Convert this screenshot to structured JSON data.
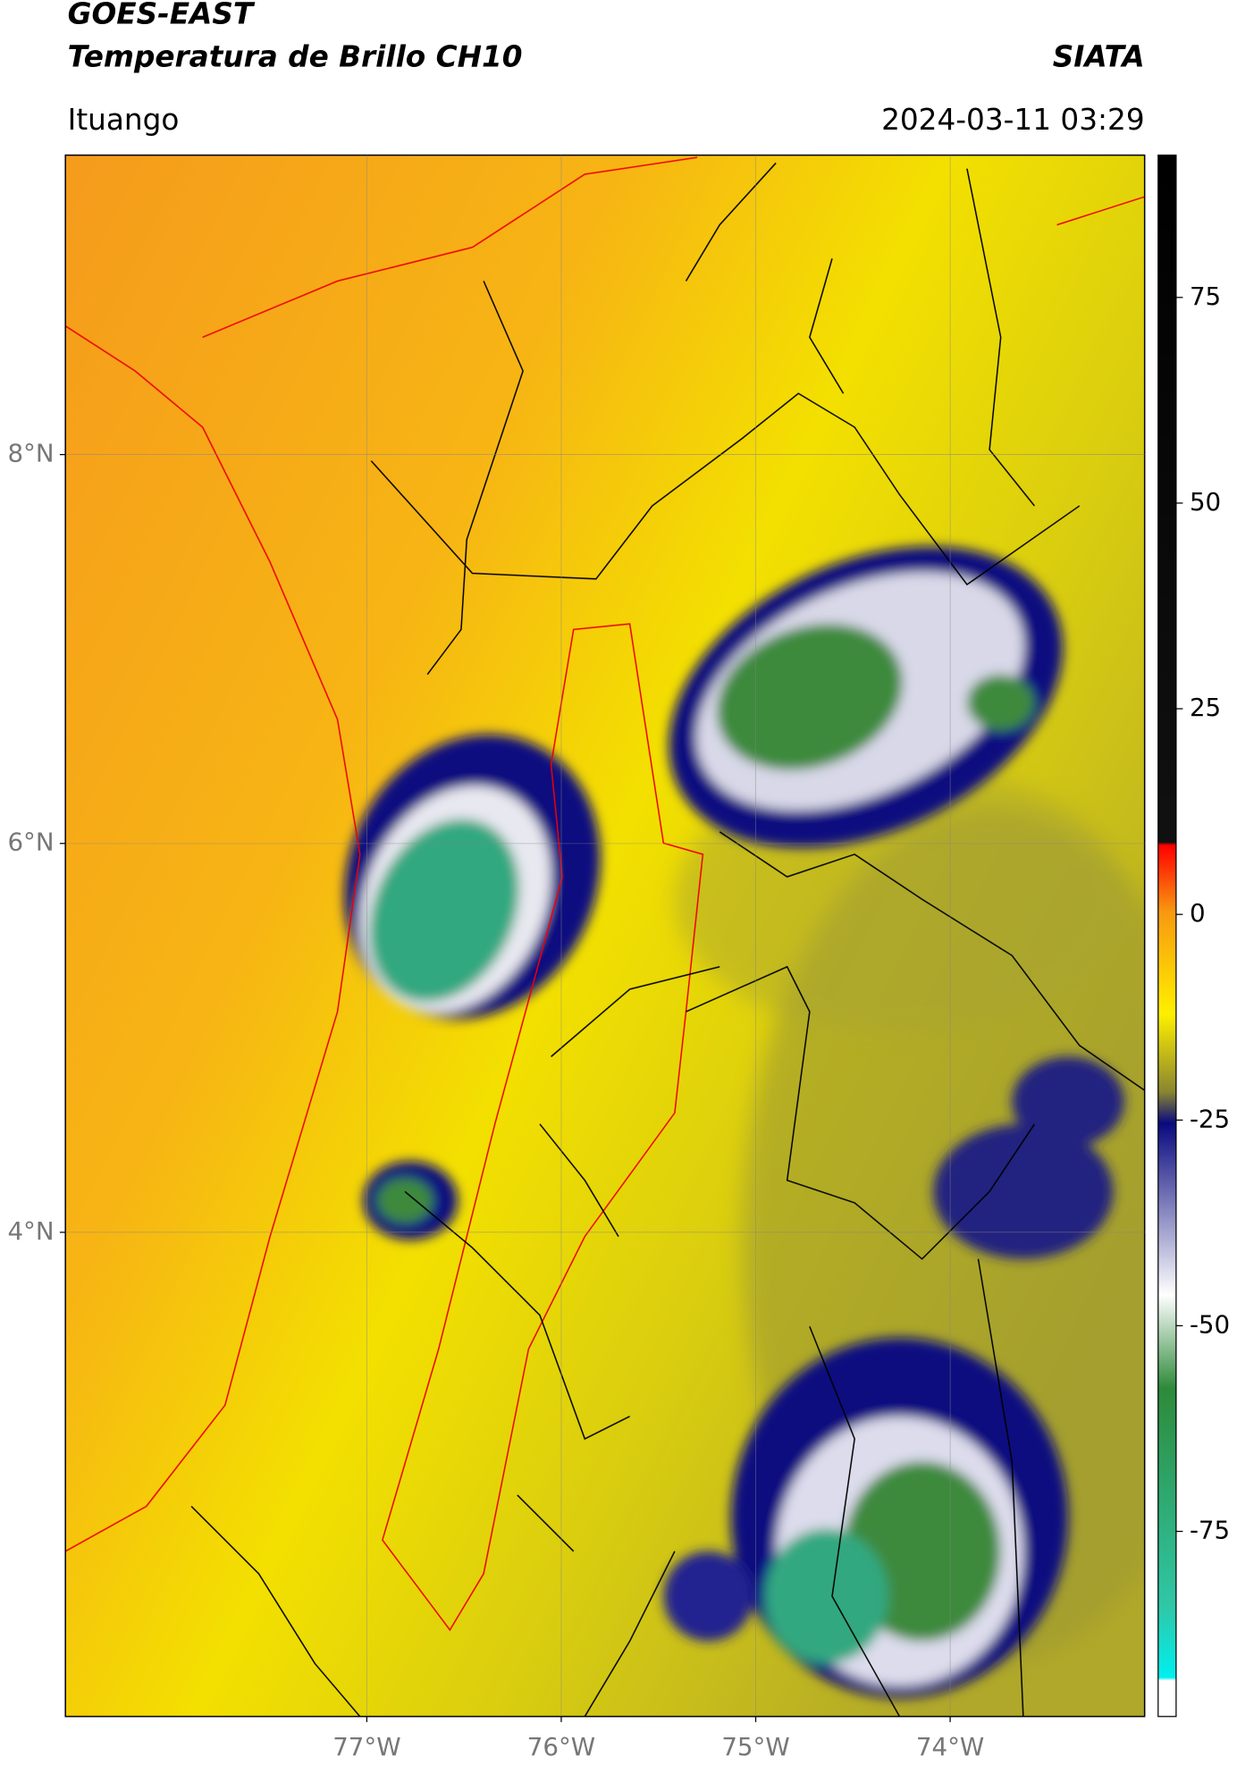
{
  "header": {
    "title": "GOES-EAST",
    "subtitle": "Temperatura de Brillo CH10",
    "source": "SIATA",
    "location": "Ituango",
    "datetime": "2024-03-11 03:29"
  },
  "map": {
    "xlim": [
      -78.55,
      -73.0
    ],
    "ylim": [
      1.51,
      9.54
    ],
    "xticks": [
      {
        "value": -77,
        "label": "77°W"
      },
      {
        "value": -76,
        "label": "76°W"
      },
      {
        "value": -75,
        "label": "75°W"
      },
      {
        "value": -74,
        "label": "74°W"
      }
    ],
    "yticks": [
      {
        "value": 4,
        "label": "4°N"
      },
      {
        "value": 6,
        "label": "6°N"
      },
      {
        "value": 8,
        "label": "8°N"
      }
    ],
    "grid": true
  },
  "colorbar": {
    "lim": [
      -97.5,
      92.3
    ],
    "ticks": [
      -75,
      -50,
      -25,
      0,
      25,
      50,
      75
    ]
  }
}
